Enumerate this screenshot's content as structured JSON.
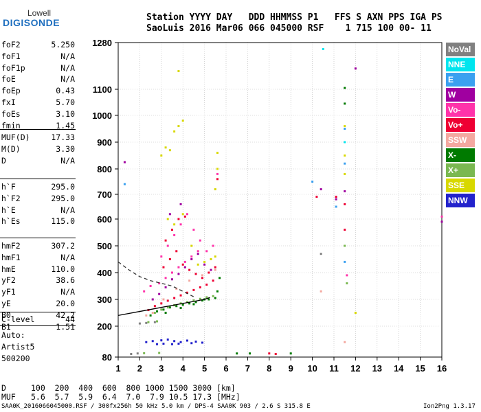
{
  "logo": {
    "top": "Lowell",
    "main": "DIGISONDE"
  },
  "header": {
    "line1": "Station YYYY DAY   DDD HHMMSS P1   FFS S AXN PPS IGA PS",
    "line2": "SaoLuis 2016 Mar06 066 045000 RSF    1 715 100 00- 11"
  },
  "params_group1": [
    {
      "name": "foF2",
      "value": "5.250"
    },
    {
      "name": "foF1",
      "value": "N/A"
    },
    {
      "name": "foF1p",
      "value": "N/A"
    },
    {
      "name": "foE",
      "value": "N/A"
    },
    {
      "name": "foEp",
      "value": "0.43"
    },
    {
      "name": "fxI",
      "value": "5.70"
    },
    {
      "name": "foEs",
      "value": "3.10"
    },
    {
      "name": "fmin",
      "value": "1.45"
    }
  ],
  "params_group2": [
    {
      "name": "MUF(D)",
      "value": "17.33"
    },
    {
      "name": "M(D)",
      "value": "3.30"
    },
    {
      "name": "D",
      "value": "N/A"
    }
  ],
  "params_group3": [
    {
      "name": "h`F",
      "value": "295.0"
    },
    {
      "name": "h`F2",
      "value": "295.0"
    },
    {
      "name": "h`E",
      "value": "N/A"
    },
    {
      "name": "h`Es",
      "value": "115.0"
    }
  ],
  "params_group4": [
    {
      "name": "hmF2",
      "value": "307.2"
    },
    {
      "name": "hmF1",
      "value": "N/A"
    },
    {
      "name": "hmE",
      "value": "110.0"
    },
    {
      "name": "yF2",
      "value": "38.6"
    },
    {
      "name": "yF1",
      "value": "N/A"
    },
    {
      "name": "yE",
      "value": "20.0"
    },
    {
      "name": "B0",
      "value": "42.2"
    },
    {
      "name": "B1",
      "value": "1.51"
    }
  ],
  "clevel": {
    "name": "C-level",
    "value": "44"
  },
  "auto": {
    "label": "Auto:",
    "name": "Artist5",
    "code": "500200"
  },
  "legend": [
    {
      "label": "NoVal",
      "color": "#808080"
    },
    {
      "label": "NNE",
      "color": "#00e5ee"
    },
    {
      "label": "E",
      "color": "#3aa0f0"
    },
    {
      "label": "W",
      "color": "#a000a0"
    },
    {
      "label": "Vo-",
      "color": "#ff33aa"
    },
    {
      "label": "Vo+",
      "color": "#ee0033"
    },
    {
      "label": "SSW",
      "color": "#f4a8a0"
    },
    {
      "label": "X-",
      "color": "#007a00"
    },
    {
      "label": "X+",
      "color": "#7ab850"
    },
    {
      "label": "SSE",
      "color": "#d8d800"
    },
    {
      "label": "NNW",
      "color": "#2222cc"
    }
  ],
  "muf_table": {
    "d_label": "D",
    "d_values": "100  200  400  600  800 1000 1500 3000 [km]",
    "m_label": "MUF",
    "m_values": "5.6  5.7  5.9  6.4  7.0  7.9 10.5 17.3 [MHz]"
  },
  "footer": {
    "left": "SAA0K_2016066045000.RSF / 300fx256h 50 kHz 5.0 km / DPS-4 SAA0K 903 / 2.6 S 315.8 E",
    "right": "Ion2Png 1.3.17"
  },
  "chart_data": {
    "type": "scatter",
    "xlabel": "",
    "ylabel": "",
    "xlim": [
      1,
      16
    ],
    "ylim": [
      80,
      1280
    ],
    "x_ticks": [
      1,
      2,
      3,
      4,
      5,
      6,
      7,
      8,
      9,
      10,
      11,
      12,
      13,
      14,
      15,
      16
    ],
    "y_ticks": [
      80,
      200,
      300,
      400,
      500,
      600,
      700,
      800,
      900,
      1000,
      1100,
      1280
    ],
    "grid": true,
    "x_unit": "MHz",
    "y_unit": "km",
    "series": [
      {
        "name": "NNW",
        "points": [
          [
            2.3,
            138
          ],
          [
            2.6,
            142
          ],
          [
            3.0,
            145
          ],
          [
            3.3,
            148
          ],
          [
            3.6,
            142
          ],
          [
            3.9,
            138
          ],
          [
            4.2,
            144
          ],
          [
            4.6,
            140
          ],
          [
            4.9,
            136
          ],
          [
            3.1,
            132
          ],
          [
            3.8,
            132
          ],
          [
            4.4,
            134
          ],
          [
            2.8,
            130
          ],
          [
            3.5,
            130
          ]
        ]
      },
      {
        "name": "X-",
        "points": [
          [
            2.5,
            240
          ],
          [
            2.8,
            255
          ],
          [
            3.1,
            262
          ],
          [
            3.4,
            270
          ],
          [
            3.7,
            275
          ],
          [
            4.0,
            280
          ],
          [
            4.3,
            285
          ],
          [
            4.6,
            290
          ],
          [
            4.9,
            296
          ],
          [
            5.2,
            300
          ],
          [
            5.5,
            305
          ],
          [
            3.2,
            250
          ],
          [
            3.9,
            268
          ],
          [
            4.5,
            282
          ],
          [
            5.0,
            300
          ],
          [
            5.6,
            330
          ],
          [
            5.7,
            380
          ],
          [
            6.5,
            94
          ],
          [
            7.1,
            94
          ],
          [
            9.0,
            94
          ],
          [
            11.5,
            1105
          ],
          [
            11.5,
            1045
          ]
        ]
      },
      {
        "name": "Vo+",
        "points": [
          [
            2.4,
            260
          ],
          [
            2.7,
            275
          ],
          [
            3.0,
            285
          ],
          [
            3.3,
            295
          ],
          [
            3.6,
            305
          ],
          [
            3.9,
            315
          ],
          [
            4.2,
            325
          ],
          [
            4.5,
            335
          ],
          [
            4.8,
            345
          ],
          [
            5.1,
            355
          ],
          [
            5.4,
            370
          ],
          [
            3.1,
            420
          ],
          [
            3.4,
            450
          ],
          [
            3.7,
            480
          ],
          [
            4.0,
            430
          ],
          [
            4.3,
            410
          ],
          [
            4.6,
            395
          ],
          [
            4.9,
            380
          ],
          [
            5.2,
            400
          ],
          [
            5.5,
            420
          ],
          [
            3.2,
            520
          ],
          [
            3.5,
            560
          ],
          [
            3.8,
            600
          ],
          [
            4.1,
            610
          ],
          [
            5.6,
            760
          ],
          [
            10.2,
            690
          ],
          [
            11.1,
            690
          ],
          [
            11.5,
            560
          ],
          [
            11.5,
            660
          ],
          [
            8.0,
            94
          ],
          [
            8.3,
            92
          ]
        ]
      },
      {
        "name": "Vo-",
        "points": [
          [
            2.2,
            330
          ],
          [
            2.5,
            350
          ],
          [
            2.9,
            360
          ],
          [
            3.2,
            380
          ],
          [
            3.5,
            400
          ],
          [
            3.8,
            420
          ],
          [
            4.1,
            440
          ],
          [
            4.4,
            460
          ],
          [
            4.7,
            480
          ],
          [
            3.0,
            460
          ],
          [
            3.3,
            500
          ],
          [
            3.6,
            540
          ],
          [
            3.9,
            580
          ],
          [
            4.2,
            620
          ],
          [
            4.5,
            560
          ],
          [
            4.8,
            520
          ],
          [
            5.1,
            480
          ],
          [
            5.4,
            500
          ],
          [
            5.6,
            780
          ],
          [
            11.6,
            390
          ],
          [
            16.0,
            610
          ]
        ]
      },
      {
        "name": "W",
        "points": [
          [
            2.6,
            300
          ],
          [
            2.9,
            320
          ],
          [
            3.2,
            345
          ],
          [
            3.5,
            375
          ],
          [
            3.8,
            395
          ],
          [
            4.1,
            420
          ],
          [
            4.4,
            450
          ],
          [
            4.7,
            470
          ],
          [
            5.0,
            430
          ],
          [
            5.3,
            410
          ],
          [
            3.4,
            620
          ],
          [
            3.9,
            660
          ],
          [
            1.3,
            825
          ],
          [
            10.4,
            720
          ],
          [
            11.1,
            680
          ],
          [
            11.5,
            712
          ],
          [
            12.0,
            1180
          ],
          [
            16.0,
            590
          ]
        ]
      },
      {
        "name": "SSE",
        "points": [
          [
            3.0,
            850
          ],
          [
            3.2,
            880
          ],
          [
            3.4,
            870
          ],
          [
            3.6,
            940
          ],
          [
            3.8,
            960
          ],
          [
            4.0,
            980
          ],
          [
            3.3,
            600
          ],
          [
            3.6,
            580
          ],
          [
            4.0,
            620
          ],
          [
            4.4,
            500
          ],
          [
            4.7,
            430
          ],
          [
            5.0,
            440
          ],
          [
            5.3,
            450
          ],
          [
            5.5,
            460
          ],
          [
            5.6,
            800
          ],
          [
            5.6,
            860
          ],
          [
            5.5,
            720
          ],
          [
            3.8,
            1170
          ],
          [
            11.5,
            960
          ],
          [
            11.5,
            850
          ],
          [
            11.5,
            780
          ],
          [
            12.0,
            250
          ]
        ]
      },
      {
        "name": "X+",
        "points": [
          [
            2.7,
            250
          ],
          [
            3.0,
            262
          ],
          [
            3.3,
            270
          ],
          [
            3.6,
            278
          ],
          [
            3.9,
            285
          ],
          [
            4.2,
            290
          ],
          [
            4.5,
            296
          ],
          [
            4.8,
            302
          ],
          [
            5.1,
            308
          ],
          [
            5.4,
            312
          ],
          [
            2.4,
            215
          ],
          [
            2.8,
            218
          ],
          [
            2.2,
            95
          ],
          [
            2.9,
            96
          ],
          [
            11.5,
            500
          ],
          [
            11.6,
            360
          ]
        ]
      },
      {
        "name": "SSW",
        "points": [
          [
            2.3,
            240
          ],
          [
            2.6,
            250
          ],
          [
            3.1,
            300
          ],
          [
            3.7,
            340
          ],
          [
            4.3,
            370
          ],
          [
            4.9,
            390
          ],
          [
            5.5,
            410
          ],
          [
            10.4,
            330
          ],
          [
            11.5,
            138
          ]
        ]
      },
      {
        "name": "E",
        "points": [
          [
            1.3,
            740
          ],
          [
            10.0,
            750
          ],
          [
            11.1,
            650
          ],
          [
            11.5,
            950
          ],
          [
            11.5,
            820
          ],
          [
            11.5,
            440
          ]
        ]
      },
      {
        "name": "NNE",
        "points": [
          [
            10.5,
            1255
          ],
          [
            11.5,
            900
          ]
        ]
      },
      {
        "name": "NoVal",
        "points": [
          [
            2.0,
            210
          ],
          [
            2.3,
            212
          ],
          [
            2.7,
            215
          ],
          [
            1.6,
            92
          ],
          [
            1.9,
            94
          ],
          [
            10.4,
            470
          ]
        ]
      }
    ],
    "lines": [
      {
        "name": "solid",
        "points": [
          [
            1,
            240
          ],
          [
            2,
            255
          ],
          [
            3,
            270
          ],
          [
            4,
            285
          ],
          [
            5,
            300
          ],
          [
            5.25,
            307
          ]
        ]
      },
      {
        "name": "dashed",
        "points": [
          [
            1,
            440
          ],
          [
            1.5,
            410
          ],
          [
            2,
            385
          ],
          [
            2.5,
            370
          ],
          [
            3,
            360
          ],
          [
            3.5,
            350
          ],
          [
            4,
            330
          ],
          [
            4.5,
            310
          ]
        ]
      }
    ]
  }
}
